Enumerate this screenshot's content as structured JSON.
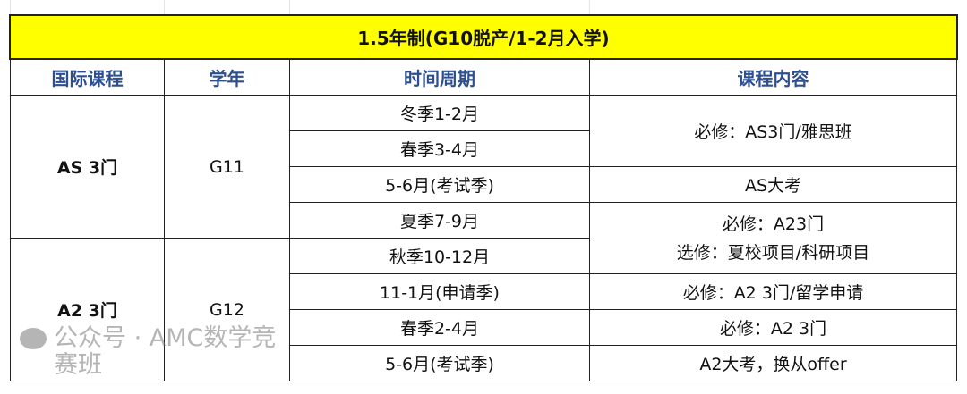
{
  "title": "1.5年制(G10脱产/1-2月入学)",
  "headers": [
    "国际课程",
    "学年",
    "时间周期",
    "课程内容"
  ],
  "courses": [
    "AS 3门",
    "A2 3门"
  ],
  "years": [
    "G11",
    "G12"
  ],
  "periods": [
    "冬季1-2月",
    "春季3-4月",
    "5-6月(考试季)",
    "夏季7-9月",
    "秋季10-12月",
    "11-1月(申请季)",
    "春季2-4月",
    "5-6月(考试季)"
  ],
  "contents": [
    "必修：AS3门/雅思班",
    "AS大考",
    "必修：A23门",
    "选修：夏校项目/科研项目",
    "必修：A2 3门/留学申请",
    "必修：A2 3门",
    "A2大考，换从offer"
  ],
  "watermark": "公众号 · AMC数学竞赛班",
  "colors": {
    "title_bg": "#ffff00",
    "header_text": "#2e4f8f"
  }
}
